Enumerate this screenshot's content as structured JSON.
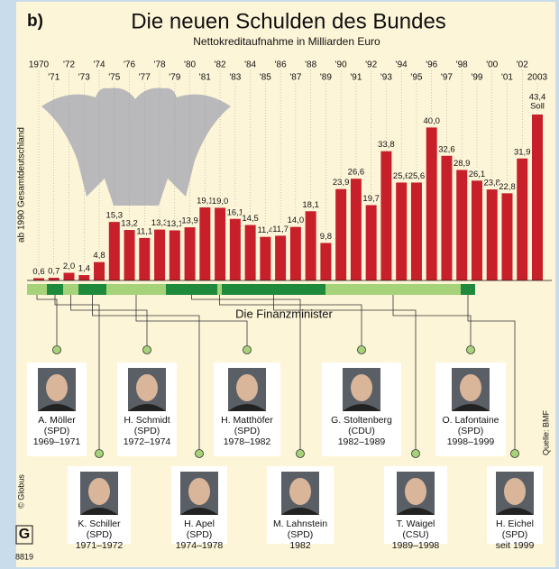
{
  "label": "b)",
  "chart_data": {
    "type": "bar",
    "title": "Die neuen Schulden des Bundes",
    "subtitle": "Nettokreditaufnahme in Milliarden Euro",
    "side_note": "ab 1990 Gesamtdeutschland",
    "annotation": "Soll",
    "color": "#c8202a",
    "categories": [
      "1970",
      "'71",
      "'72",
      "'73",
      "'74",
      "'75",
      "'76",
      "'77",
      "'78",
      "'79",
      "'80",
      "'81",
      "'82",
      "'83",
      "'84",
      "'85",
      "'86",
      "'87",
      "'88",
      "'89",
      "'90",
      "'91",
      "'92",
      "'93",
      "'94",
      "'95",
      "'96",
      "'97",
      "'98",
      "'99",
      "'00",
      "'01",
      "'02",
      "2003"
    ],
    "values": [
      0.6,
      0.7,
      2.0,
      1.4,
      4.8,
      15.3,
      13.2,
      11.1,
      13.3,
      13.1,
      13.9,
      19.1,
      19.0,
      16.1,
      14.5,
      11.4,
      11.7,
      14.0,
      18.1,
      9.8,
      23.9,
      26.6,
      19.7,
      33.8,
      25.6,
      25.6,
      40.0,
      32.6,
      28.9,
      26.1,
      23.8,
      22.8,
      31.9,
      43.4
    ],
    "value_labels": [
      "0,6",
      "0,7",
      "2,0",
      "1,4",
      "4,8",
      "15,3",
      "13,2",
      "11,1",
      "13,3",
      "13,1",
      "13,9",
      "19,1",
      "19,0",
      "16,1",
      "14,5",
      "11,4",
      "11,7",
      "14,0",
      "18,1",
      "9,8",
      "23,9",
      "26,6",
      "19,7",
      "33,8",
      "25,6",
      "25,6",
      "40,0",
      "32,6",
      "28,9",
      "26,1",
      "23,8",
      "22,8",
      "31,9",
      "43,4"
    ],
    "ylim": [
      0,
      50
    ]
  },
  "ministers_title": "Die Finanzminister",
  "ministers": [
    {
      "name": "A. Möller",
      "party": "(SPD)",
      "years": "1969–1971"
    },
    {
      "name": "K. Schiller",
      "party": "(SPD)",
      "years": "1971–1972"
    },
    {
      "name": "H. Schmidt",
      "party": "(SPD)",
      "years": "1972–1974"
    },
    {
      "name": "H. Apel",
      "party": "(SPD)",
      "years": "1974–1978"
    },
    {
      "name": "H. Matthöfer",
      "party": "(SPD)",
      "years": "1978–1982"
    },
    {
      "name": "M. Lahnstein",
      "party": "(SPD)",
      "years": "1982"
    },
    {
      "name": "G. Stoltenberg",
      "party": "(CDU)",
      "years": "1982–1989"
    },
    {
      "name": "T. Waigel",
      "party": "(CSU)",
      "years": "1989–1998"
    },
    {
      "name": "O. Lafontaine",
      "party": "(SPD)",
      "years": "1998–1999"
    },
    {
      "name": "H. Eichel",
      "party": "(SPD)",
      "years": "seit 1999"
    }
  ],
  "source": "Quelle: BMF",
  "copyright": "© Globus",
  "logo": "G",
  "number": "8819"
}
